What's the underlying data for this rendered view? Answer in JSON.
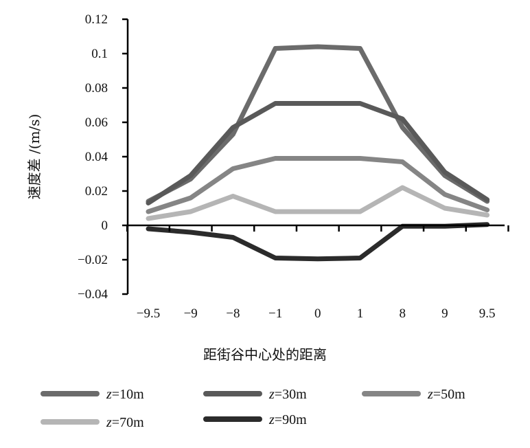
{
  "chart_data": {
    "type": "line",
    "categories": [
      "−9.5",
      "−9",
      "−8",
      "−1",
      "0",
      "1",
      "8",
      "9",
      "9.5"
    ],
    "ylabel": "速度差 /(m/s)",
    "xlabel": "距街谷中心处的距离",
    "ylim": [
      -0.04,
      0.12
    ],
    "yticks": [
      0.12,
      0.1,
      0.08,
      0.06,
      0.04,
      0.02,
      0,
      -0.02,
      -0.04
    ],
    "ytick_labels": [
      "0.12",
      "0.1",
      "0.08",
      "0.06",
      "0.04",
      "0.02",
      "0",
      "−0.02",
      "−0.04"
    ],
    "grid": false,
    "legend_position": "bottom",
    "series": [
      {
        "name_var": "z",
        "name_rest": "=10m",
        "color": "#6b6b6b",
        "values": [
          0.014,
          0.027,
          0.053,
          0.103,
          0.104,
          0.103,
          0.057,
          0.029,
          0.014
        ]
      },
      {
        "name_var": "z",
        "name_rest": "=30m",
        "color": "#595959",
        "values": [
          0.013,
          0.029,
          0.057,
          0.071,
          0.071,
          0.071,
          0.062,
          0.031,
          0.015
        ]
      },
      {
        "name_var": "z",
        "name_rest": "=50m",
        "color": "#858585",
        "values": [
          0.008,
          0.016,
          0.033,
          0.039,
          0.039,
          0.039,
          0.037,
          0.018,
          0.009
        ]
      },
      {
        "name_var": "z",
        "name_rest": "=70m",
        "color": "#b5b5b5",
        "values": [
          0.004,
          0.008,
          0.017,
          0.008,
          0.008,
          0.008,
          0.022,
          0.01,
          0.006
        ]
      },
      {
        "name_var": "z",
        "name_rest": "=90m",
        "color": "#2b2b2b",
        "values": [
          -0.002,
          -0.004,
          -0.007,
          -0.019,
          -0.0195,
          -0.019,
          -0.0005,
          -0.0005,
          0.0005
        ]
      }
    ]
  }
}
